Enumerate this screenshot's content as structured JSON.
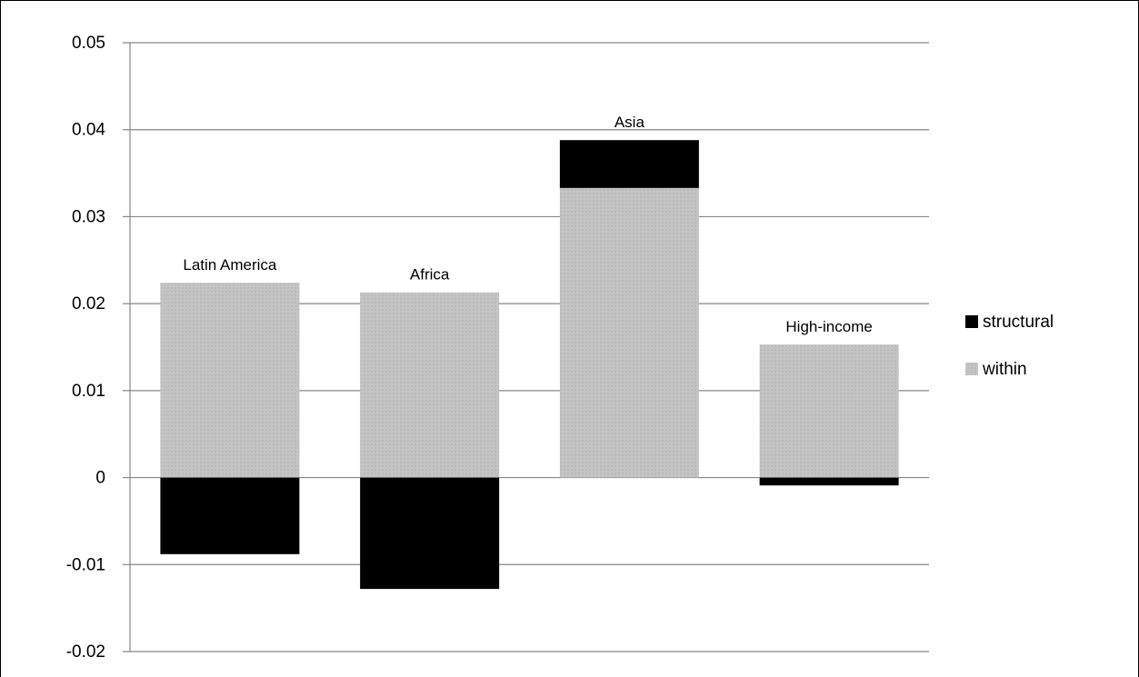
{
  "chart_data": {
    "type": "bar",
    "stacked": true,
    "categories": [
      "Latin America",
      "Africa",
      "Asia",
      "High-income"
    ],
    "series": [
      {
        "name": "structural",
        "color": "#000000",
        "values": [
          -0.0088,
          -0.0128,
          0.0055,
          -0.0009
        ]
      },
      {
        "name": "within",
        "color": "#c0c0c0",
        "values": [
          0.0224,
          0.0213,
          0.0333,
          0.0153
        ]
      }
    ],
    "ylim": [
      -0.02,
      0.05
    ],
    "yticks": [
      "0.05",
      "0.04",
      "0.03",
      "0.02",
      "0.01",
      "0",
      "-0.01",
      "-0.02"
    ],
    "ytick_values": [
      0.05,
      0.04,
      0.03,
      0.02,
      0.01,
      0,
      -0.01,
      -0.02
    ],
    "grid": true,
    "legend_position": "right",
    "title": "",
    "xlabel": "",
    "ylabel": ""
  }
}
